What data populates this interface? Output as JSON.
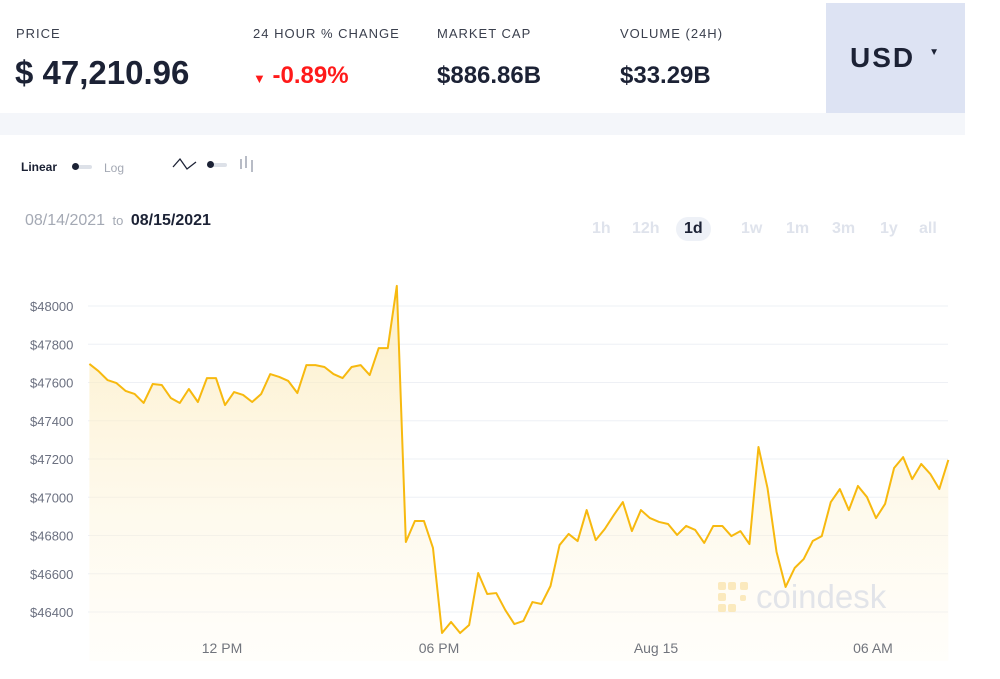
{
  "header": {
    "price_label": "PRICE",
    "price": "$ 47,210.96",
    "change_label": "24 HOUR % CHANGE",
    "change": "-0.89%",
    "change_color": "#ff1a1a",
    "mcap_label": "MARKET CAP",
    "mcap": "$886.86B",
    "volume_label": "VOLUME (24H)",
    "volume": "$33.29B",
    "currency": "USD",
    "currency_icon": "caret-down-icon"
  },
  "controls": {
    "linear_label": "Linear",
    "log_label": "Log",
    "line_icon": "line-chart-icon",
    "bar_icon": "candle-chart-icon"
  },
  "dates": {
    "from": "08/14/2021",
    "to_word": "to",
    "to": "08/15/2021"
  },
  "ranges": [
    {
      "label": "1h"
    },
    {
      "label": "12h"
    },
    {
      "label": "1d",
      "active": true
    },
    {
      "label": "1w"
    },
    {
      "label": "1m"
    },
    {
      "label": "3m"
    },
    {
      "label": "1y"
    },
    {
      "label": "all"
    }
  ],
  "watermark": "coindesk",
  "chart_data": {
    "type": "area",
    "line_color": "#f7b90f",
    "ylim": [
      46250,
      48150
    ],
    "y_ticks": [
      46400,
      46600,
      46800,
      47000,
      47200,
      47400,
      47600,
      47800,
      48000
    ],
    "y_tick_labels": [
      "$46400",
      "$46600",
      "$46800",
      "$47000",
      "$47200",
      "$47400",
      "$47600",
      "$47800",
      "$48000"
    ],
    "x_ticks": [
      {
        "label": "12 PM",
        "t": "2021-08-14 12:00"
      },
      {
        "label": "06 PM",
        "t": "2021-08-14 18:00"
      },
      {
        "label": "Aug 15",
        "t": "2021-08-15 00:00"
      },
      {
        "label": "06 AM",
        "t": "2021-08-15 06:00"
      }
    ],
    "grid": true,
    "values": [
      47697,
      47660,
      47613,
      47597,
      47556,
      47540,
      47493,
      47592,
      47587,
      47519,
      47493,
      47566,
      47498,
      47623,
      47623,
      47482,
      47550,
      47535,
      47498,
      47540,
      47644,
      47629,
      47608,
      47545,
      47691,
      47691,
      47681,
      47644,
      47623,
      47681,
      47691,
      47639,
      47780,
      47780,
      48105,
      46766,
      46876,
      46876,
      46735,
      46290,
      46348,
      46290,
      46332,
      46604,
      46494,
      46499,
      46410,
      46337,
      46353,
      46452,
      46442,
      46536,
      46750,
      46808,
      46771,
      46933,
      46776,
      46834,
      46907,
      46975,
      46823,
      46933,
      46891,
      46871,
      46860,
      46803,
      46850,
      46829,
      46761,
      46850,
      46850,
      46797,
      46823,
      46755,
      47263,
      47048,
      46714,
      46531,
      46630,
      46677,
      46771,
      46797,
      46975,
      47043,
      46933,
      47059,
      47001,
      46891,
      46965,
      47153,
      47210,
      47095,
      47174,
      47122,
      47043,
      47195
    ],
    "x": [
      "2021-08-14 08:20",
      "2021-08-14 08:35",
      "2021-08-14 08:50",
      "2021-08-14 09:05",
      "2021-08-14 09:20",
      "2021-08-14 09:35",
      "2021-08-14 09:50",
      "2021-08-14 10:05",
      "2021-08-14 10:20",
      "2021-08-14 10:35",
      "2021-08-14 10:50",
      "2021-08-14 11:05",
      "2021-08-14 11:20",
      "2021-08-14 11:35",
      "2021-08-14 11:50",
      "2021-08-14 12:05",
      "2021-08-14 12:20",
      "2021-08-14 12:35",
      "2021-08-14 12:50",
      "2021-08-14 13:05",
      "2021-08-14 13:20",
      "2021-08-14 13:35",
      "2021-08-14 13:50",
      "2021-08-14 14:05",
      "2021-08-14 14:20",
      "2021-08-14 14:35",
      "2021-08-14 14:50",
      "2021-08-14 15:05",
      "2021-08-14 15:20",
      "2021-08-14 15:35",
      "2021-08-14 15:50",
      "2021-08-14 16:05",
      "2021-08-14 16:20",
      "2021-08-14 16:35",
      "2021-08-14 16:50",
      "2021-08-14 17:05",
      "2021-08-14 17:20",
      "2021-08-14 17:35",
      "2021-08-14 17:50",
      "2021-08-14 18:05",
      "2021-08-14 18:20",
      "2021-08-14 18:35",
      "2021-08-14 18:50",
      "2021-08-14 19:05",
      "2021-08-14 19:20",
      "2021-08-14 19:35",
      "2021-08-14 19:50",
      "2021-08-14 20:05",
      "2021-08-14 20:20",
      "2021-08-14 20:35",
      "2021-08-14 20:50",
      "2021-08-14 21:05",
      "2021-08-14 21:20",
      "2021-08-14 21:35",
      "2021-08-14 21:50",
      "2021-08-14 22:05",
      "2021-08-14 22:20",
      "2021-08-14 22:35",
      "2021-08-14 22:50",
      "2021-08-14 23:05",
      "2021-08-14 23:20",
      "2021-08-14 23:35",
      "2021-08-14 23:50",
      "2021-08-15 00:05",
      "2021-08-15 00:20",
      "2021-08-15 00:35",
      "2021-08-15 00:50",
      "2021-08-15 01:05",
      "2021-08-15 01:20",
      "2021-08-15 01:35",
      "2021-08-15 01:50",
      "2021-08-15 02:05",
      "2021-08-15 02:20",
      "2021-08-15 02:35",
      "2021-08-15 02:50",
      "2021-08-15 03:05",
      "2021-08-15 03:20",
      "2021-08-15 03:35",
      "2021-08-15 03:50",
      "2021-08-15 04:05",
      "2021-08-15 04:20",
      "2021-08-15 04:35",
      "2021-08-15 04:50",
      "2021-08-15 05:05",
      "2021-08-15 05:20",
      "2021-08-15 05:35",
      "2021-08-15 05:50",
      "2021-08-15 06:05",
      "2021-08-15 06:20",
      "2021-08-15 06:35",
      "2021-08-15 06:50",
      "2021-08-15 07:05",
      "2021-08-15 07:20",
      "2021-08-15 07:35",
      "2021-08-15 07:50",
      "2021-08-15 08:05"
    ]
  }
}
